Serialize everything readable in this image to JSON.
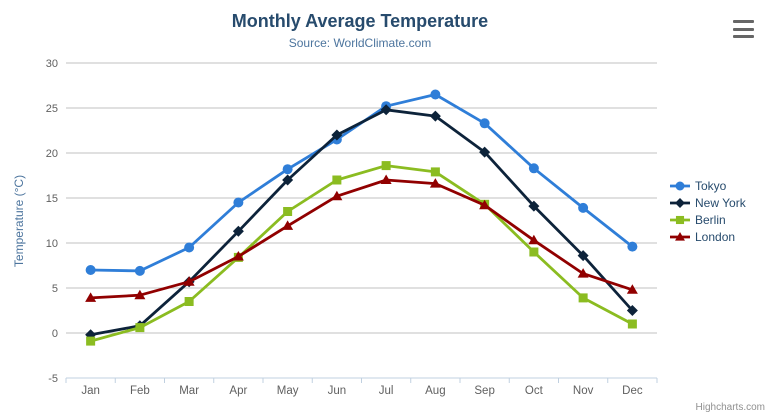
{
  "chart": {
    "title": "Monthly Average Temperature",
    "subtitle": "Source: WorldClimate.com",
    "credits": "Highcharts.com"
  },
  "icons": {
    "context_menu_icon": "hamburger-bars"
  },
  "colors": {
    "title_text": "#274b6d",
    "subtitle_text": "#4d759e",
    "axis_label_text": "#606060",
    "grid_line": "#c0c0c0",
    "axis_line": "#c0d0e0",
    "legend_text": "#274b6d",
    "credits_text": "#909090",
    "menu_icon": "#666666"
  },
  "chart_data": {
    "type": "line",
    "title": "Monthly Average Temperature",
    "subtitle": "Source: WorldClimate.com",
    "categories": [
      "Jan",
      "Feb",
      "Mar",
      "Apr",
      "May",
      "Jun",
      "Jul",
      "Aug",
      "Sep",
      "Oct",
      "Nov",
      "Dec"
    ],
    "series": [
      {
        "name": "Tokyo",
        "color": "#2f7ed8",
        "marker": "circle",
        "values": [
          7.0,
          6.9,
          9.5,
          14.5,
          18.2,
          21.5,
          25.2,
          26.5,
          23.3,
          18.3,
          13.9,
          9.6
        ]
      },
      {
        "name": "New York",
        "color": "#0d233a",
        "marker": "diamond",
        "values": [
          -0.2,
          0.8,
          5.7,
          11.3,
          17.0,
          22.0,
          24.8,
          24.1,
          20.1,
          14.1,
          8.6,
          2.5
        ]
      },
      {
        "name": "Berlin",
        "color": "#8bbc21",
        "marker": "square",
        "values": [
          -0.9,
          0.6,
          3.5,
          8.4,
          13.5,
          17.0,
          18.6,
          17.9,
          14.3,
          9.0,
          3.9,
          1.0
        ]
      },
      {
        "name": "London",
        "color": "#910000",
        "marker": "triangle",
        "values": [
          3.9,
          4.2,
          5.7,
          8.5,
          11.9,
          15.2,
          17.0,
          16.6,
          14.2,
          10.3,
          6.6,
          4.8
        ]
      }
    ],
    "xlabel": "",
    "ylabel": "Temperature (°C)",
    "ylim": [
      -5,
      30
    ],
    "ytick_step": 5,
    "grid": true,
    "legend_position": "right"
  }
}
